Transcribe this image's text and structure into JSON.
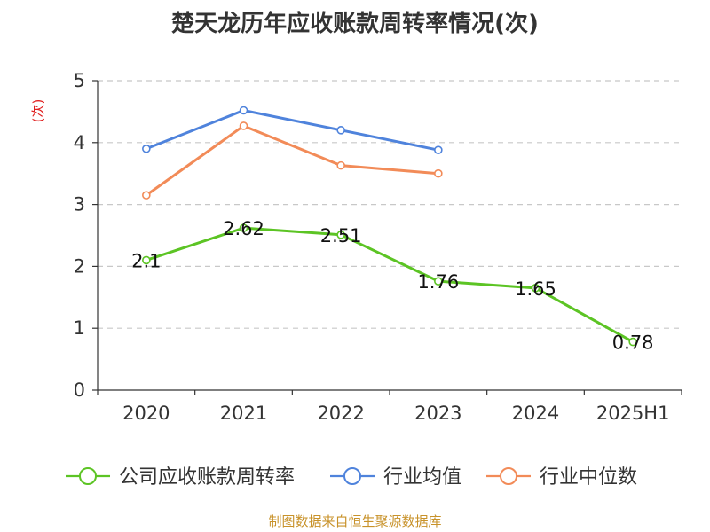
{
  "chart_data": {
    "type": "line",
    "title": "楚天龙历年应收账款周转率情况(次)",
    "ylabel": "(次)",
    "xlabel": "",
    "categories": [
      "2020",
      "2021",
      "2022",
      "2023",
      "2024",
      "2025H1"
    ],
    "ylim": [
      0,
      5
    ],
    "yticks": [
      0,
      1,
      2,
      3,
      4,
      5
    ],
    "grid": true,
    "legend_position": "bottom",
    "series": [
      {
        "name": "公司应收账款周转率",
        "color": "#5cc424",
        "values": [
          2.1,
          2.62,
          2.51,
          1.76,
          1.65,
          0.78
        ],
        "labels": [
          "2.1",
          "2.62",
          "2.51",
          "1.76",
          "1.65",
          "0.78"
        ]
      },
      {
        "name": "行业均值",
        "color": "#4f83dc",
        "values": [
          3.9,
          4.52,
          4.2,
          3.88,
          null,
          null
        ]
      },
      {
        "name": "行业中位数",
        "color": "#f28b58",
        "values": [
          3.15,
          4.27,
          3.63,
          3.5,
          null,
          null
        ]
      }
    ]
  },
  "footer": "制图数据来自恒生聚源数据库"
}
